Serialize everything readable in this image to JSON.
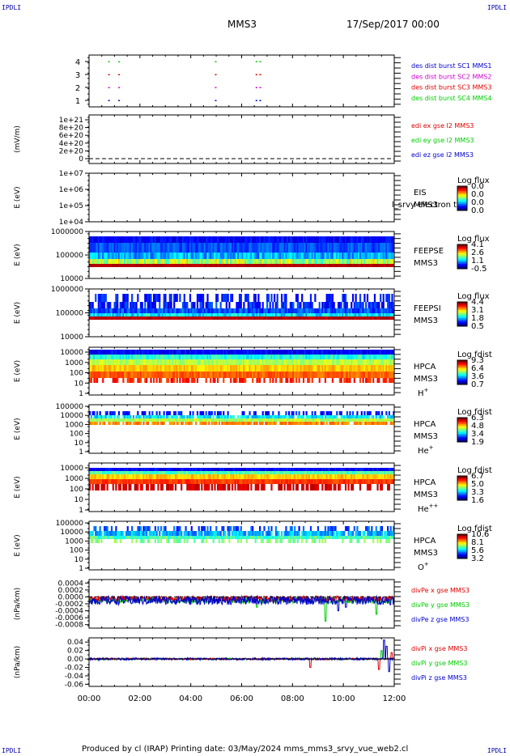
{
  "header": {
    "corner_label": "IPDLI",
    "spacecraft": "MMS3",
    "datetime": "17/Sep/2017 00:00"
  },
  "footer": {
    "text": "Produced by cl (IRAP)   Printing date: 03/May/2024   mms_mms3_srvy_vue_web2.cl"
  },
  "colors": {
    "blue": "#0000cc",
    "magenta": "#cc00cc",
    "red": "#dd0000",
    "green": "#00cc00"
  },
  "chart_data": [
    {
      "type": "scatter",
      "panel": "burst",
      "yticks": [
        "4",
        "3",
        "2",
        "1"
      ],
      "legend": [
        {
          "label": "des dist burst SC1 MMS1",
          "color": "#0000cc"
        },
        {
          "label": "des dist burst SC2 MMS2",
          "color": "#cc00cc"
        },
        {
          "label": "des dist burst SC3 MMS3",
          "color": "#dd0000"
        },
        {
          "label": "des dist burst SC4 MMS4",
          "color": "#00cc00"
        }
      ],
      "series": [
        {
          "level": 4,
          "color": "#00cc00",
          "x_hours": [
            0.75,
            1.15,
            4.95,
            6.55,
            6.7
          ]
        },
        {
          "level": 3,
          "color": "#dd0000",
          "x_hours": [
            0.75,
            1.15,
            4.95,
            6.55,
            6.7
          ]
        },
        {
          "level": 2,
          "color": "#cc00cc",
          "x_hours": [
            0.75,
            1.15,
            4.95,
            6.55,
            6.7
          ]
        },
        {
          "level": 1,
          "color": "#0000cc",
          "x_hours": [
            0.75,
            1.15,
            4.95,
            6.55,
            6.7
          ]
        }
      ]
    },
    {
      "type": "line",
      "panel": "edi",
      "ylabel": "(mV/m)",
      "yticks": [
        "1e+21",
        "8e+20",
        "6e+20",
        "4e+20",
        "2e+20",
        "0"
      ],
      "legend": [
        {
          "label": "edi ex gse l2 MMS3",
          "color": "#dd0000"
        },
        {
          "label": "edi ey gse l2 MMS3",
          "color": "#00cc00"
        },
        {
          "label": "edi ez gse l2 MMS3",
          "color": "#0000cc"
        }
      ]
    },
    {
      "type": "heatmap",
      "panel": "eis",
      "ylabel": "E (eV)",
      "yticks": [
        "1e+07",
        "1e+06",
        "1e+05",
        "1e+04"
      ],
      "right_labels": [
        "EIS",
        "MMS3"
      ],
      "overlay_text": "l_srvy electron tc",
      "colorbar_title": "Log flux",
      "colorbar_ticks": [
        "0.0",
        "0.0",
        "0.0",
        "0.0"
      ]
    },
    {
      "type": "heatmap",
      "panel": "feepse",
      "ylabel": "E (eV)",
      "yticks": [
        "1000000",
        "100000",
        "10000"
      ],
      "right_labels": [
        "FEEPSE",
        "MMS3"
      ],
      "colorbar_title": "Log flux",
      "colorbar_ticks": [
        "4.1",
        "2.6",
        "1.1",
        "-0.5"
      ]
    },
    {
      "type": "heatmap",
      "panel": "feepsi",
      "ylabel": "E (eV)",
      "yticks": [
        "1000000",
        "100000",
        "10000"
      ],
      "right_labels": [
        "FEEPSI",
        "MMS3"
      ],
      "colorbar_title": "Log flux",
      "colorbar_ticks": [
        "4.4",
        "3.1",
        "1.8",
        "0.5"
      ]
    },
    {
      "type": "heatmap",
      "panel": "hpca_h",
      "ylabel": "E (eV)",
      "yticks": [
        "10000",
        "1000",
        "100",
        "10",
        "1"
      ],
      "right_labels": [
        "HPCA",
        "MMS3"
      ],
      "species": "H",
      "species_charge": "+",
      "colorbar_title": "Log fdist",
      "colorbar_ticks": [
        "9.3",
        "6.4",
        "3.6",
        "0.7"
      ]
    },
    {
      "type": "heatmap",
      "panel": "hpca_he",
      "ylabel": "E (eV)",
      "yticks": [
        "100000",
        "10000",
        "1000",
        "100",
        "10",
        "1"
      ],
      "right_labels": [
        "HPCA",
        "MMS3"
      ],
      "species": "He",
      "species_charge": "+",
      "colorbar_title": "Log fdist",
      "colorbar_ticks": [
        "6.3",
        "4.8",
        "3.4",
        "1.9"
      ]
    },
    {
      "type": "heatmap",
      "panel": "hpca_he2",
      "ylabel": "E (eV)",
      "yticks": [
        "10000",
        "1000",
        "100",
        "10",
        "1"
      ],
      "right_labels": [
        "HPCA",
        "MMS3"
      ],
      "species": "He",
      "species_charge": "++",
      "colorbar_title": "Log fdist",
      "colorbar_ticks": [
        "6.7",
        "5.0",
        "3.3",
        "1.6"
      ]
    },
    {
      "type": "heatmap",
      "panel": "hpca_o",
      "ylabel": "E (eV)",
      "yticks": [
        "100000",
        "10000",
        "1000",
        "100",
        "10",
        "1"
      ],
      "right_labels": [
        "HPCA",
        "MMS3"
      ],
      "species": "O",
      "species_charge": "+",
      "colorbar_title": "Log fdist",
      "colorbar_ticks": [
        "10.6",
        "8.1",
        "5.6",
        "3.2"
      ]
    },
    {
      "type": "line",
      "panel": "divpe",
      "ylabel": "(nPa/km)",
      "yticks": [
        "0.0004",
        "0.0002",
        "0.0000",
        "-0.0002",
        "-0.0004",
        "-0.0006",
        "-0.0008"
      ],
      "ylim": [
        -0.0009,
        0.0005
      ],
      "legend": [
        {
          "label": "divPe x gse MMS3",
          "color": "#dd0000"
        },
        {
          "label": "divPe y gse MMS3",
          "color": "#00cc00"
        },
        {
          "label": "divPe z gse MMS3",
          "color": "#0000cc"
        }
      ]
    },
    {
      "type": "line",
      "panel": "divpi",
      "ylabel": "(nPa/km)",
      "yticks": [
        "0.04",
        "0.02",
        "0.00",
        "-0.02",
        "-0.04",
        "-0.06"
      ],
      "ylim": [
        -0.065,
        0.05
      ],
      "legend": [
        {
          "label": "divPi x gse MMS3",
          "color": "#dd0000"
        },
        {
          "label": "divPi y gse MMS3",
          "color": "#00cc00"
        },
        {
          "label": "divPi z gse MMS3",
          "color": "#0000cc"
        }
      ]
    }
  ],
  "x_axis": {
    "ticks": [
      "00:00",
      "02:00",
      "04:00",
      "06:00",
      "08:00",
      "10:00",
      "12:00"
    ],
    "range_hours": [
      0,
      12
    ]
  }
}
